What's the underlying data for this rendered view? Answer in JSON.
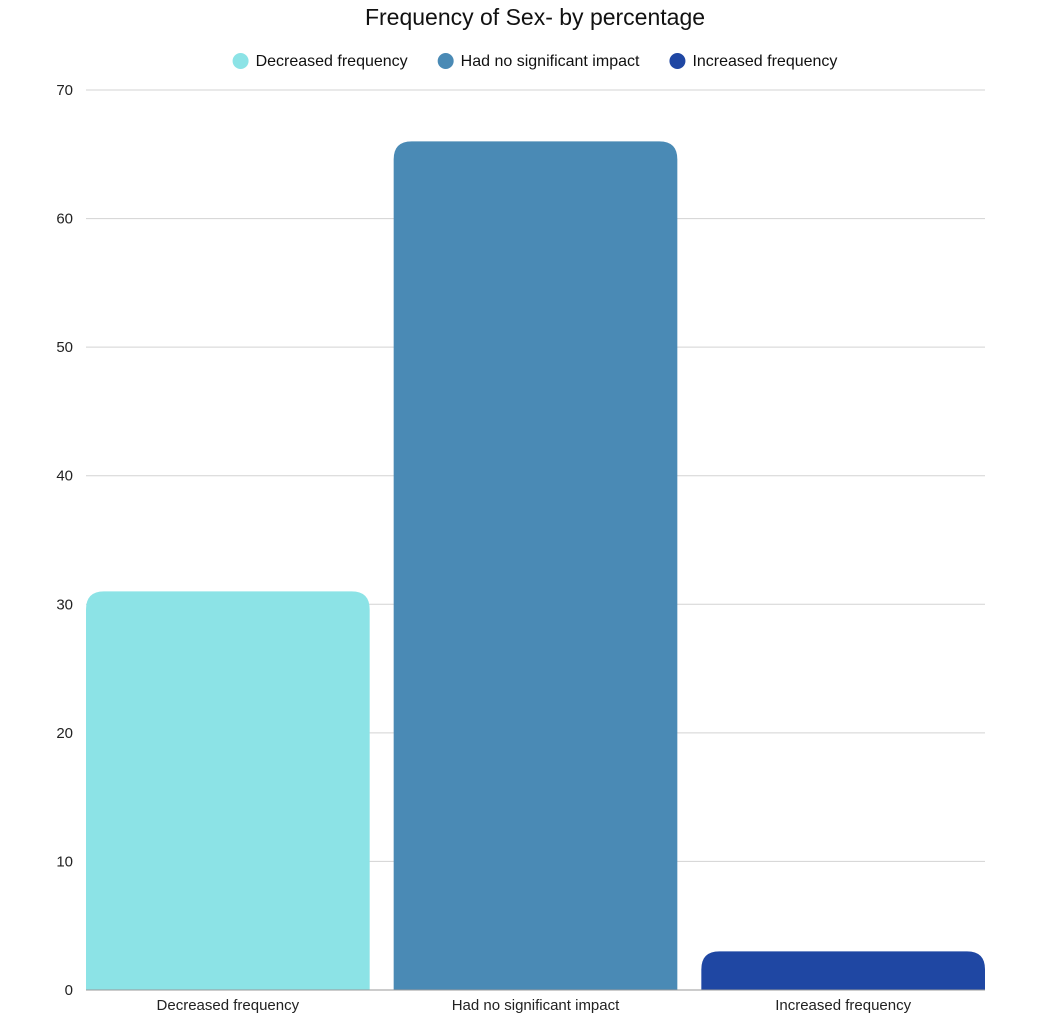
{
  "chart_data": {
    "type": "bar",
    "title": "Frequency of Sex- by percentage",
    "xlabel": "",
    "ylabel": "",
    "categories": [
      "Decreased frequency",
      "Had no significant impact",
      "Increased frequency"
    ],
    "values": [
      31,
      66,
      3
    ],
    "colors": [
      "#8ce3e6",
      "#4a8ab5",
      "#1f47a3"
    ],
    "ylim": [
      0,
      70
    ],
    "yticks": [
      0,
      10,
      20,
      30,
      40,
      50,
      60,
      70
    ],
    "grid": true,
    "legend": {
      "placement": "top-center",
      "entries": [
        "Decreased frequency",
        "Had no significant impact",
        "Increased frequency"
      ]
    }
  }
}
